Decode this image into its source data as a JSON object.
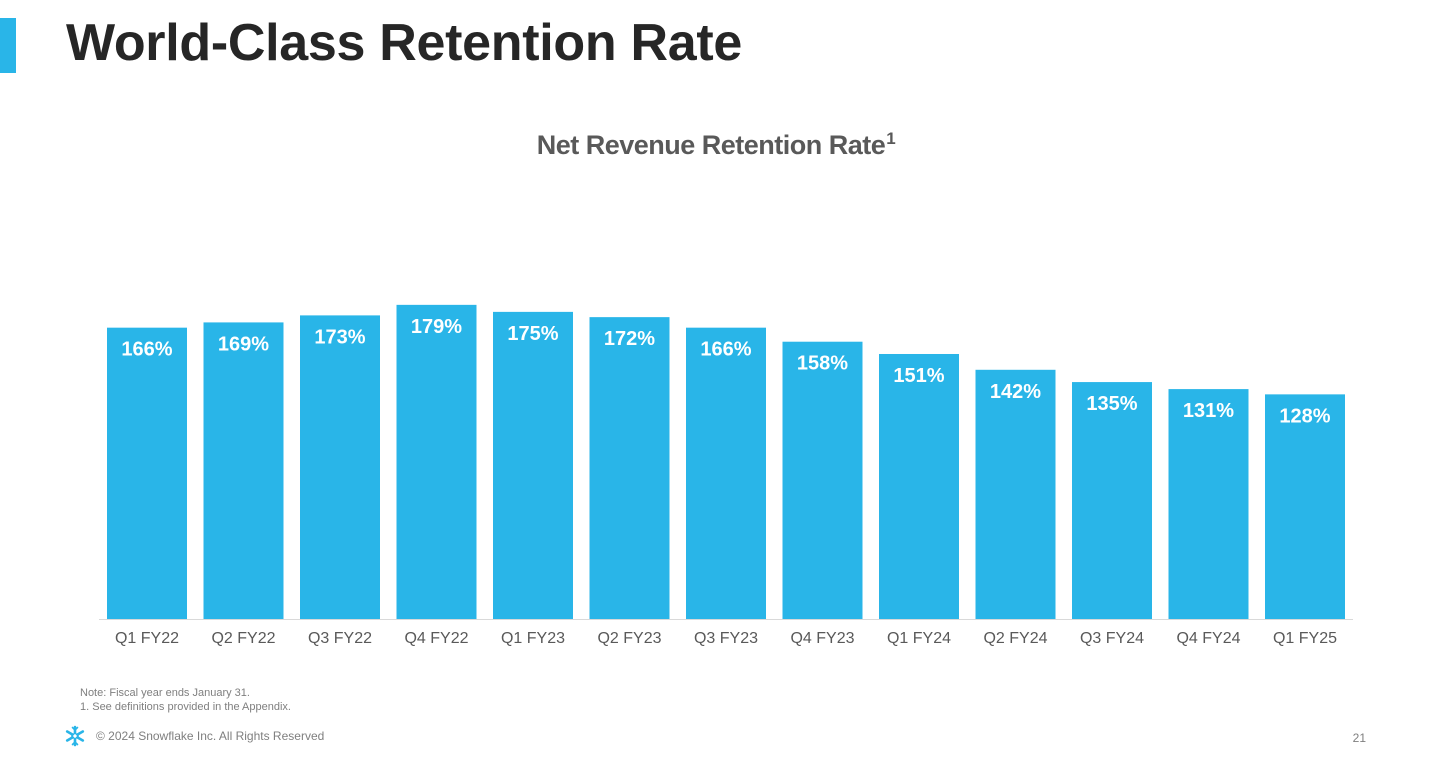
{
  "header": {
    "title": "World-Class Retention Rate",
    "accent_color": "#29b5e8"
  },
  "chart_data": {
    "type": "bar",
    "title": "Net Revenue Retention Rate",
    "title_superscript": "1",
    "xlabel": "",
    "ylabel": "",
    "categories": [
      "Q1 FY22",
      "Q2 FY22",
      "Q3 FY22",
      "Q4 FY22",
      "Q1 FY23",
      "Q2 FY23",
      "Q3 FY23",
      "Q4 FY23",
      "Q1 FY24",
      "Q2 FY24",
      "Q3 FY24",
      "Q4 FY24",
      "Q1 FY25"
    ],
    "values": [
      166,
      169,
      173,
      179,
      175,
      172,
      166,
      158,
      151,
      142,
      135,
      131,
      128
    ],
    "data_labels": [
      "166%",
      "169%",
      "173%",
      "179%",
      "175%",
      "172%",
      "166%",
      "158%",
      "151%",
      "142%",
      "135%",
      "131%",
      "128%"
    ],
    "bar_color": "#29b5e8",
    "grid": false,
    "legend": "none"
  },
  "footnotes": {
    "note": "Note: Fiscal year ends January 31.",
    "definition": "1.  See definitions provided in the Appendix."
  },
  "footer": {
    "logo_icon": "snowflake-logo-icon",
    "copyright": "© 2024 Snowflake Inc. All Rights Reserved",
    "page_number": "21"
  }
}
